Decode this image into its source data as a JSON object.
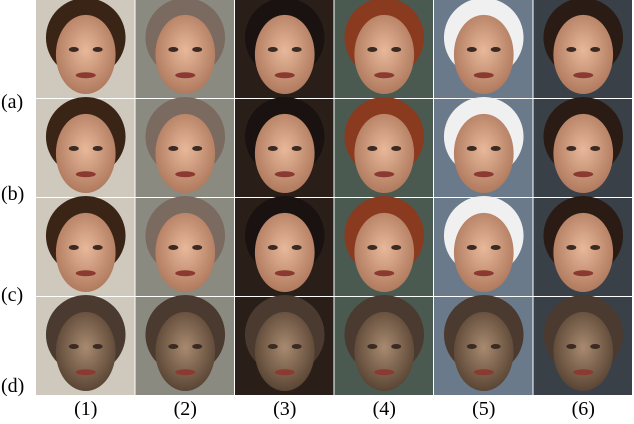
{
  "row_labels": [
    "(a)",
    "(b)",
    "(c)",
    "(d)"
  ],
  "column_labels": [
    "(1)",
    "(2)",
    "(3)",
    "(4)",
    "(5)",
    "(6)"
  ]
}
